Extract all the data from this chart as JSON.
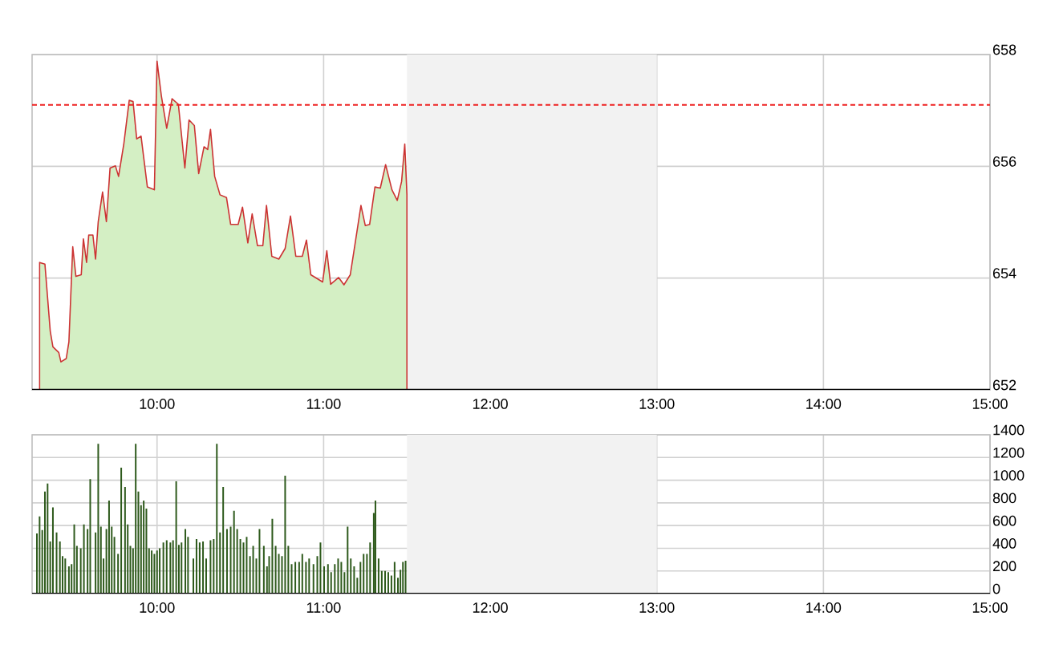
{
  "chart_data": [
    {
      "type": "area",
      "xlim": [
        9.25,
        15
      ],
      "ylim": [
        652,
        658
      ],
      "grid": true,
      "xticks": [
        {
          "value": 10,
          "label": "10:00"
        },
        {
          "value": 11,
          "label": "11:00"
        },
        {
          "value": 12,
          "label": "12:00"
        },
        {
          "value": 13,
          "label": "13:00"
        },
        {
          "value": 14,
          "label": "14:00"
        },
        {
          "value": 15,
          "label": "15:00"
        }
      ],
      "yticks": [
        652,
        654,
        656,
        658
      ],
      "ref_lines": [
        {
          "axis": "y",
          "value": 657.1,
          "color": "#ee2222",
          "line_style": "dashed"
        }
      ],
      "bands": [
        {
          "axis": "x",
          "from": 11.5,
          "to": 13,
          "color": "#f2f2f2"
        }
      ],
      "series": [
        {
          "color": "#d4efc4",
          "x": [
            9.295,
            9.327,
            9.359,
            9.375,
            9.41,
            9.423,
            9.455,
            9.471,
            9.494,
            9.513,
            9.545,
            9.558,
            9.577,
            9.59,
            9.615,
            9.631,
            9.647,
            9.673,
            9.696,
            9.718,
            9.75,
            9.769,
            9.801,
            9.833,
            9.856,
            9.878,
            9.904,
            9.942,
            9.984,
            10.0,
            10.026,
            10.058,
            10.09,
            10.128,
            10.167,
            10.192,
            10.224,
            10.25,
            10.282,
            10.304,
            10.321,
            10.346,
            10.378,
            10.417,
            10.442,
            10.487,
            10.513,
            10.545,
            10.571,
            10.603,
            10.635,
            10.657,
            10.689,
            10.731,
            10.769,
            10.801,
            10.833,
            10.872,
            10.897,
            10.923,
            10.994,
            11.019,
            11.042,
            11.09,
            11.122,
            11.16,
            11.192,
            11.224,
            11.25,
            11.276,
            11.308,
            11.34,
            11.372,
            11.41,
            11.442,
            11.468,
            11.487,
            11.5
          ],
          "values": [
            654.28,
            654.25,
            653.05,
            652.77,
            652.67,
            652.5,
            652.56,
            652.86,
            654.56,
            654.03,
            654.06,
            654.7,
            654.28,
            654.77,
            654.77,
            654.34,
            655.01,
            655.54,
            655.01,
            655.97,
            656.01,
            655.82,
            656.41,
            657.18,
            657.16,
            656.49,
            656.54,
            655.63,
            655.58,
            657.88,
            657.26,
            656.68,
            657.21,
            657.11,
            655.97,
            656.83,
            656.73,
            655.87,
            656.35,
            656.3,
            656.66,
            655.82,
            655.49,
            655.44,
            654.96,
            654.96,
            655.27,
            654.63,
            655.15,
            654.58,
            654.58,
            655.3,
            654.39,
            654.34,
            654.53,
            655.11,
            654.39,
            654.39,
            654.68,
            654.06,
            653.93,
            654.49,
            653.89,
            654.01,
            653.88,
            654.06,
            654.68,
            655.3,
            654.94,
            654.96,
            655.63,
            655.61,
            656.03,
            655.58,
            655.39,
            655.73,
            656.4,
            655.49
          ]
        }
      ]
    },
    {
      "type": "bar",
      "xlim": [
        9.25,
        15
      ],
      "ylim": [
        0,
        1400
      ],
      "grid": true,
      "xticks": [
        {
          "value": 10,
          "label": "10:00"
        },
        {
          "value": 11,
          "label": "11:00"
        },
        {
          "value": 12,
          "label": "12:00"
        },
        {
          "value": 13,
          "label": "13:00"
        },
        {
          "value": 14,
          "label": "14:00"
        },
        {
          "value": 15,
          "label": "15:00"
        }
      ],
      "yticks": [
        0,
        200,
        400,
        600,
        800,
        1000,
        1200,
        1400
      ],
      "bands": [
        {
          "axis": "x",
          "from": 11.5,
          "to": 13,
          "color": "#f2f2f2"
        }
      ],
      "series": [
        {
          "color": "#2e5a1c",
          "x": [
            9.279,
            9.295,
            9.311,
            9.327,
            9.343,
            9.359,
            9.375,
            9.397,
            9.417,
            9.433,
            9.449,
            9.471,
            9.487,
            9.503,
            9.519,
            9.542,
            9.561,
            9.583,
            9.599,
            9.631,
            9.647,
            9.663,
            9.679,
            9.696,
            9.712,
            9.728,
            9.744,
            9.766,
            9.785,
            9.808,
            9.824,
            9.84,
            9.856,
            9.872,
            9.888,
            9.904,
            9.92,
            9.936,
            9.952,
            9.968,
            9.984,
            10.0,
            10.016,
            10.038,
            10.058,
            10.08,
            10.096,
            10.115,
            10.131,
            10.147,
            10.17,
            10.186,
            10.218,
            10.237,
            10.256,
            10.276,
            10.295,
            10.321,
            10.34,
            10.359,
            10.378,
            10.397,
            10.42,
            10.442,
            10.462,
            10.481,
            10.5,
            10.519,
            10.538,
            10.558,
            10.577,
            10.596,
            10.615,
            10.641,
            10.66,
            10.673,
            10.692,
            10.712,
            10.731,
            10.75,
            10.769,
            10.788,
            10.808,
            10.83,
            10.853,
            10.872,
            10.894,
            10.913,
            10.939,
            10.962,
            10.981,
            11.003,
            11.026,
            11.045,
            11.067,
            11.087,
            11.106,
            11.125,
            11.144,
            11.163,
            11.183,
            11.202,
            11.221,
            11.24,
            11.26,
            11.279,
            11.301,
            11.311,
            11.33,
            11.349,
            11.369,
            11.388,
            11.407,
            11.426,
            11.446,
            11.461,
            11.476,
            11.492
          ],
          "values": [
            530,
            680,
            560,
            900,
            970,
            460,
            760,
            540,
            460,
            330,
            310,
            240,
            260,
            610,
            420,
            400,
            610,
            570,
            1010,
            540,
            1320,
            590,
            310,
            570,
            820,
            590,
            500,
            350,
            1110,
            940,
            610,
            420,
            400,
            1320,
            900,
            780,
            820,
            750,
            400,
            380,
            350,
            380,
            400,
            450,
            470,
            450,
            470,
            990,
            430,
            450,
            570,
            500,
            310,
            480,
            450,
            460,
            310,
            470,
            480,
            1320,
            540,
            940,
            570,
            590,
            730,
            570,
            480,
            450,
            500,
            330,
            420,
            310,
            570,
            420,
            240,
            330,
            660,
            420,
            350,
            330,
            1040,
            420,
            260,
            280,
            280,
            350,
            280,
            310,
            260,
            330,
            450,
            240,
            260,
            190,
            260,
            310,
            280,
            190,
            590,
            310,
            240,
            140,
            280,
            350,
            350,
            450,
            710,
            820,
            310,
            200,
            200,
            190,
            160,
            280,
            140,
            210,
            280,
            290
          ]
        }
      ]
    }
  ]
}
